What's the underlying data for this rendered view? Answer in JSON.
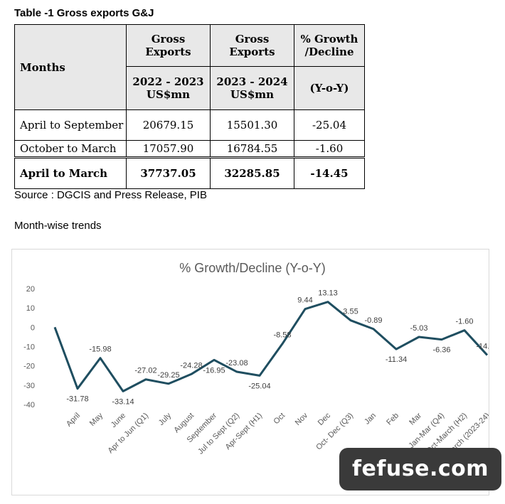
{
  "table": {
    "title": "Table -1 Gross exports G&J",
    "header": {
      "months": "Months",
      "col1_top": "Gross Exports",
      "col2_top": "Gross Exports",
      "col3_top": "% Growth /Decline",
      "col1_sub": "2022 - 2023 US$mn",
      "col2_sub": "2023 - 2024 US$mn",
      "col3_sub": "(Y-o-Y)"
    },
    "rows": [
      {
        "period": "April to September",
        "fy2223": "20679.15",
        "fy2324": "15501.30",
        "growth": "-25.04"
      },
      {
        "period": "October to March",
        "fy2223": "17057.90",
        "fy2324": "16784.55",
        "growth": "-1.60"
      },
      {
        "period": "April to March",
        "fy2223": "37737.05",
        "fy2324": "32285.85",
        "growth": "-14.45"
      }
    ]
  },
  "source_note": "Source : DGCIS and Press Release, PIB",
  "section_heading": "Month-wise trends",
  "chart_data": {
    "type": "line",
    "title": "% Growth/Decline (Y-o-Y)",
    "line_color": "#1f4e60",
    "ylim": [
      -40,
      20
    ],
    "yticks": [
      -40,
      -30,
      -20,
      -10,
      0,
      10,
      20
    ],
    "grid": false,
    "legend": "none",
    "categories": [
      "",
      "April",
      "May",
      "June",
      "Apr to Jun (Q1)",
      "July",
      "August",
      "September",
      "Jul to Sept (Q2)",
      "Apr-Sept (H1)",
      "Oct",
      "Nov",
      "Dec",
      "Oct- Dec (Q3)",
      "Jan",
      "Feb",
      "Mar",
      "Jan-Mar (Q4)",
      "Oct-March (H2)",
      "April to March (2023-24)"
    ],
    "values": [
      0,
      -31.78,
      -15.98,
      -33.14,
      -27.02,
      -29.25,
      -24.28,
      -16.95,
      -23.08,
      -25.04,
      -8.58,
      9.44,
      13.13,
      3.55,
      -0.89,
      -11.34,
      -5.03,
      -6.36,
      -1.6,
      -14.44
    ],
    "data_labels": [
      "",
      "-31.78",
      "-15.98",
      "-33.14",
      "-27.02",
      "-29.25",
      "-24.28",
      "-16.95",
      "-23.08",
      "-25.04",
      "-8.58",
      "9.44",
      "13.13",
      "3.55",
      "-0.89",
      "-11.34",
      "-5.03",
      "-6.36",
      "-1.60",
      "-14.44"
    ]
  },
  "watermark": "fefuse.com"
}
